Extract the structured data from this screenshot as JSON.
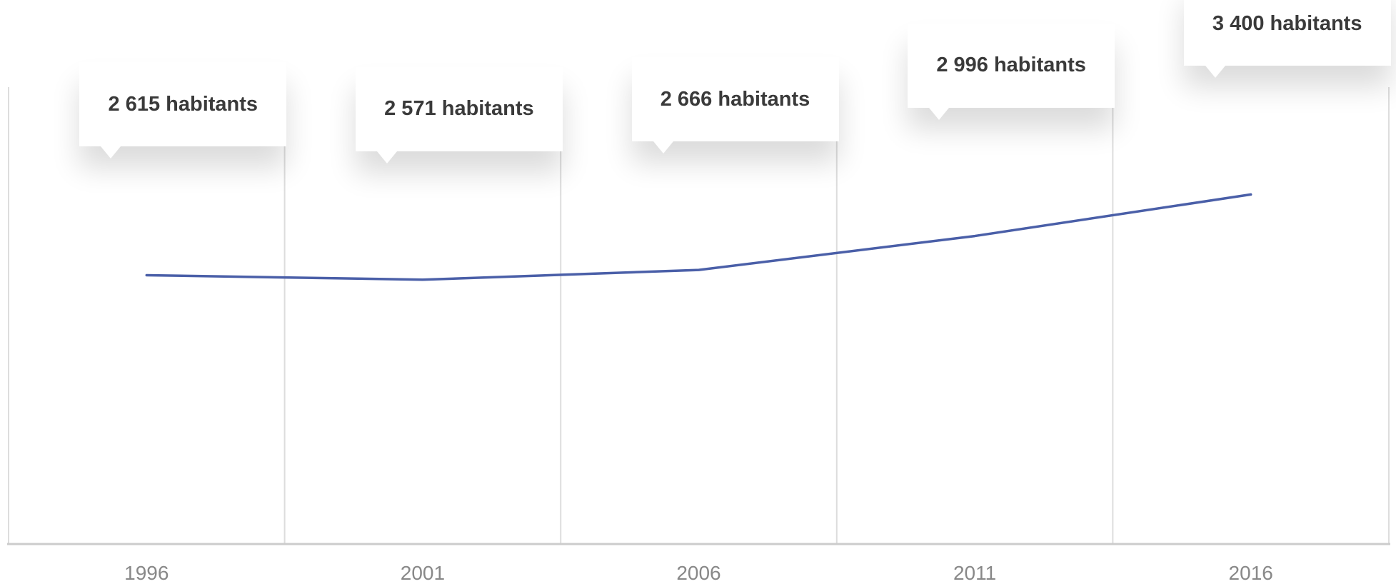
{
  "chart_data": {
    "type": "line",
    "title": "",
    "xlabel": "",
    "ylabel": "",
    "categories": [
      "1996",
      "2001",
      "2006",
      "2011",
      "2016"
    ],
    "series": [
      {
        "values": [
          2615,
          2571,
          2666,
          2996,
          3400
        ]
      }
    ],
    "data_labels": [
      "2 615 habitants",
      "2 571 habitants",
      "2 666 habitants",
      "2 996 habitants",
      "3 400 habitants"
    ],
    "ylim": [
      0,
      5000
    ],
    "grid": {
      "vertical": true,
      "horizontal": false
    },
    "legend": "none",
    "colors": {
      "line": "#4a5fa8",
      "grid": "#dddddd",
      "axis": "#cccccc",
      "tick_text": "#888888",
      "label_text": "#3a3a3a"
    }
  }
}
